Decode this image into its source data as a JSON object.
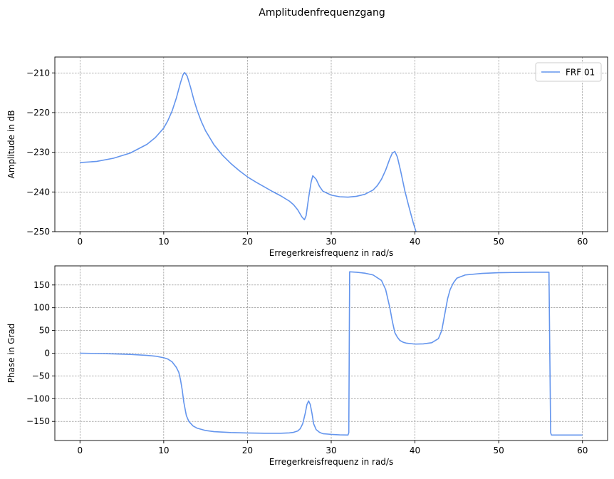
{
  "figure": {
    "title": "Amplitudenfrequenzgang"
  },
  "chart_data": [
    {
      "type": "line",
      "xlabel": "Erregerkreisfrequenz in rad/s",
      "ylabel": "Amplitude in dB",
      "xlim": [
        -3,
        63
      ],
      "ylim": [
        -250,
        -206
      ],
      "xticks": [
        0,
        10,
        20,
        30,
        40,
        50,
        60
      ],
      "yticks": [
        -250,
        -240,
        -230,
        -220,
        -210
      ],
      "ytick_labels": [
        "−250",
        "−240",
        "−230",
        "−220",
        "−210"
      ],
      "grid": true,
      "legend": {
        "position": "top-right",
        "entries": [
          "FRF 01"
        ]
      },
      "series": [
        {
          "name": "FRF 01",
          "color": "#6495ED",
          "x": [
            0,
            2,
            4,
            6,
            8,
            9,
            10,
            10.5,
            11,
            11.5,
            12,
            12.3,
            12.5,
            12.8,
            13.2,
            13.6,
            14,
            14.5,
            15,
            16,
            17,
            18,
            19,
            20,
            21,
            22,
            23,
            24,
            25,
            25.5,
            26,
            26.5,
            26.8,
            27,
            27.3,
            27.6,
            27.8,
            28.2,
            28.6,
            29,
            30,
            31,
            32,
            33,
            34,
            35,
            35.5,
            36,
            36.5,
            37,
            37.3,
            37.6,
            37.9,
            38.3,
            38.8,
            39.3,
            39.8,
            40.2
          ],
          "y": [
            -232.6,
            -232.3,
            -231.5,
            -230.2,
            -228.0,
            -226.3,
            -223.9,
            -222.0,
            -219.6,
            -216.4,
            -212.5,
            -210.5,
            -209.9,
            -210.8,
            -213.6,
            -216.8,
            -219.5,
            -222.3,
            -224.6,
            -228.1,
            -230.7,
            -232.8,
            -234.6,
            -236.2,
            -237.5,
            -238.7,
            -239.9,
            -241.0,
            -242.3,
            -243.2,
            -244.5,
            -246.3,
            -247.0,
            -246.0,
            -241.5,
            -237.5,
            -235.9,
            -236.8,
            -238.6,
            -239.8,
            -240.8,
            -241.2,
            -241.3,
            -241.1,
            -240.6,
            -239.5,
            -238.4,
            -236.8,
            -234.5,
            -231.6,
            -230.2,
            -229.8,
            -231.2,
            -234.8,
            -239.8,
            -243.9,
            -247.8,
            -250.5
          ]
        }
      ]
    },
    {
      "type": "line",
      "xlabel": "Erregerkreisfrequenz in rad/s",
      "ylabel": "Phase in Grad",
      "xlim": [
        -3,
        63
      ],
      "ylim": [
        -192,
        192
      ],
      "xticks": [
        0,
        10,
        20,
        30,
        40,
        50,
        60
      ],
      "yticks": [
        -150,
        -100,
        -50,
        0,
        50,
        100,
        150
      ],
      "ytick_labels": [
        "−150",
        "−100",
        "−50",
        "0",
        "50",
        "100",
        "150"
      ],
      "grid": true,
      "series": [
        {
          "color": "#6495ED",
          "x": [
            0,
            2,
            4,
            6,
            8,
            9,
            10,
            10.5,
            11,
            11.5,
            11.8,
            12,
            12.2,
            12.4,
            12.7,
            13,
            13.5,
            14,
            15,
            16,
            18,
            20,
            22,
            24,
            25,
            25.5,
            26,
            26.3,
            26.6,
            26.9,
            27.1,
            27.3,
            27.5,
            27.7,
            27.9,
            28.2,
            28.6,
            29,
            30,
            31,
            32,
            32.1,
            32.2,
            33,
            34,
            35,
            36,
            36.5,
            37,
            37.3,
            37.6,
            37.9,
            38.2,
            38.6,
            39,
            40,
            41,
            42,
            42.8,
            43.2,
            43.6,
            43.9,
            44.2,
            44.6,
            45,
            46,
            48,
            50,
            52,
            54,
            56,
            56.2,
            56.3,
            57,
            58,
            60
          ],
          "y": [
            0,
            -0.6,
            -1.5,
            -2.7,
            -4.8,
            -6.5,
            -10,
            -13,
            -19,
            -31,
            -42,
            -58,
            -80,
            -108,
            -137,
            -150,
            -160,
            -165,
            -170,
            -172.5,
            -174.5,
            -175.5,
            -176,
            -176,
            -175.2,
            -174,
            -171,
            -166,
            -155,
            -132,
            -113,
            -105,
            -113,
            -132,
            -155,
            -168,
            -174,
            -177,
            -178.5,
            -179.5,
            -180,
            -175,
            179,
            178,
            176,
            172,
            160,
            140,
            100,
            70,
            45,
            35,
            28,
            24,
            22,
            20,
            20.5,
            23,
            32,
            50,
            90,
            120,
            140,
            155,
            165,
            172,
            175.5,
            177,
            177.5,
            178,
            178,
            -175,
            -180,
            -180,
            -180,
            -180
          ]
        }
      ]
    }
  ]
}
